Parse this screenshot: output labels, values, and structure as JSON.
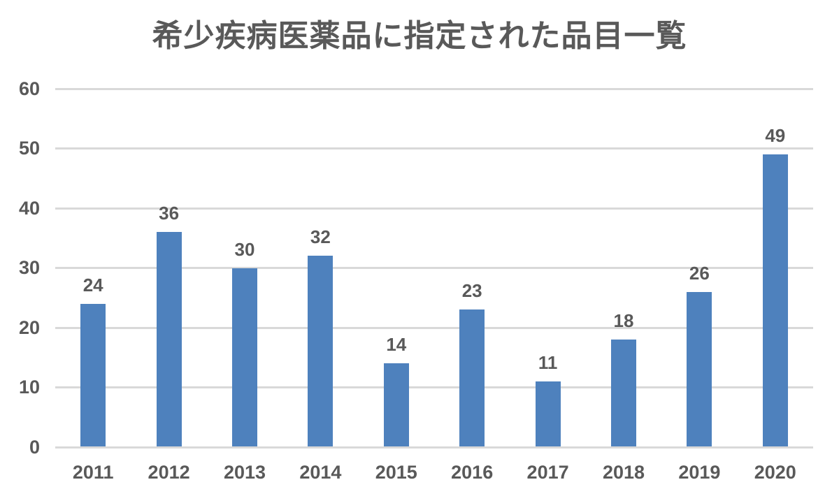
{
  "title": "希少疾病医薬品に指定された品目一覧",
  "colors": {
    "bar": "#4e81bd",
    "gridline": "#d9d9d9",
    "text": "#595959",
    "background": "#ffffff"
  },
  "chart_data": {
    "type": "bar",
    "title": "希少疾病医薬品に指定された品目一覧",
    "categories": [
      "2011",
      "2012",
      "2013",
      "2014",
      "2015",
      "2016",
      "2017",
      "2018",
      "2019",
      "2020"
    ],
    "values": [
      24,
      36,
      30,
      32,
      14,
      23,
      11,
      18,
      26,
      49
    ],
    "data_labels": [
      "24",
      "36",
      "30",
      "32",
      "14",
      "23",
      "11",
      "18",
      "26",
      "49"
    ],
    "xlabel": "",
    "ylabel": "",
    "ylim": [
      0,
      60
    ],
    "yticks": [
      0,
      10,
      20,
      30,
      40,
      50,
      60
    ],
    "grid": true,
    "legend": "none",
    "bar_color": "#4e81bd"
  }
}
